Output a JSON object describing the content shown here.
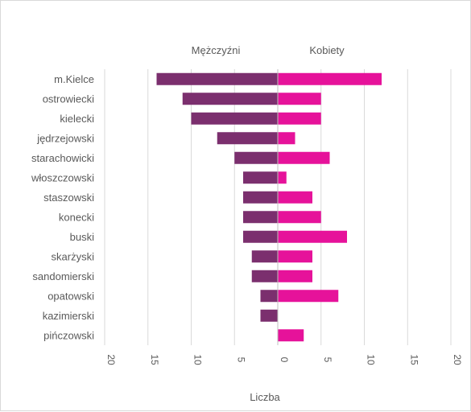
{
  "chart_data": {
    "type": "bar",
    "orientation": "horizontal-butterfly",
    "categories": [
      "m.Kielce",
      "ostrowiecki",
      "kielecki",
      "jędrzejowski",
      "starachowicki",
      "włoszczowski",
      "staszowski",
      "konecki",
      "buski",
      "skarżyski",
      "sandomierski",
      "opatowski",
      "kazimierski",
      "pińczowski"
    ],
    "series": [
      {
        "name": "Mężczyźni",
        "color": "#7b2f6e",
        "values": [
          14,
          11,
          10,
          7,
          5,
          4,
          4,
          4,
          4,
          3,
          3,
          2,
          2,
          0
        ]
      },
      {
        "name": "Kobiety",
        "color": "#e6129a",
        "values": [
          12,
          5,
          5,
          2,
          6,
          1,
          4,
          5,
          8,
          4,
          4,
          7,
          0,
          3
        ]
      }
    ],
    "xlabel": "Liczba",
    "xlim": [
      -20,
      20
    ],
    "ticks": [
      "20",
      "15",
      "10",
      "5",
      "0",
      "5",
      "10",
      "15",
      "20"
    ],
    "grid": true,
    "gridColor": "#d9d9d9"
  }
}
